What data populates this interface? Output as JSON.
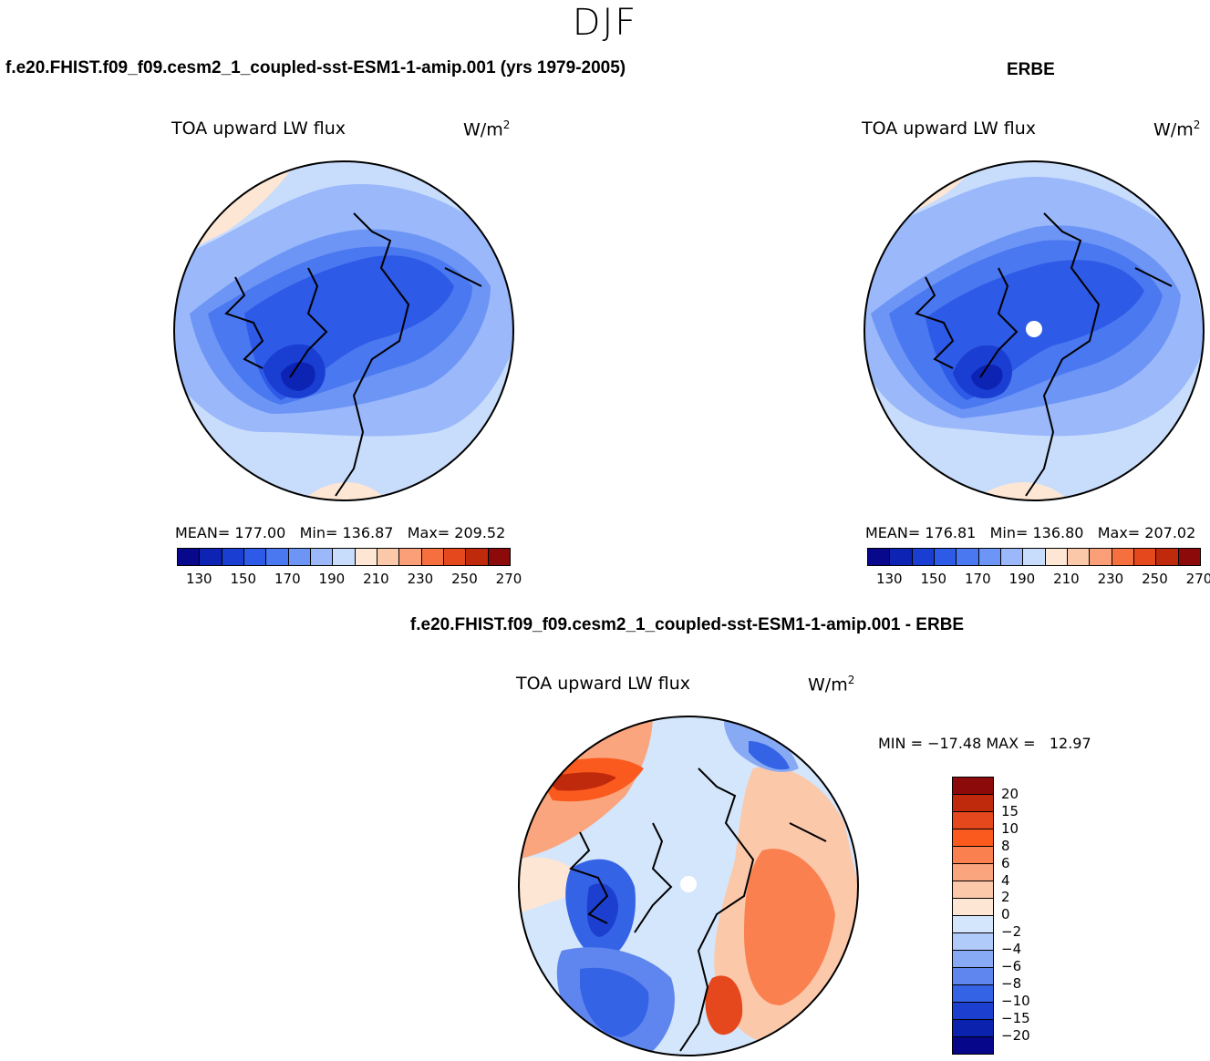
{
  "season": "DJF",
  "case_title": "f.e20.FHIST.f09_f09.cesm2_1_coupled-sst-ESM1-1-amip.001 (yrs 1979-2005)",
  "obs_title": "ERBE",
  "diff_title": "f.e20.FHIST.f09_f09.cesm2_1_coupled-sst-ESM1-1-amip.001 - ERBE",
  "panels": {
    "model": {
      "variable": "TOA upward LW flux",
      "units": "W/m",
      "units_sup": "2",
      "mean_label": "MEAN=",
      "mean": "177.00",
      "min_label": "Min=",
      "min": "136.87",
      "max_label": "Max=",
      "max": "209.52"
    },
    "obs": {
      "variable": "TOA upward LW flux",
      "units": "W/m",
      "units_sup": "2",
      "mean_label": "MEAN=",
      "mean": "176.81",
      "min_label": "Min=",
      "min": "136.80",
      "max_label": "Max=",
      "max": "207.02"
    },
    "diff": {
      "variable": "TOA upward LW flux",
      "units": "W/m",
      "units_sup": "2",
      "minmax_text": "MIN = −17.48 MAX =   12.97"
    }
  },
  "colorbar_main": {
    "tick_labels": [
      "130",
      "150",
      "170",
      "190",
      "210",
      "230",
      "250",
      "270"
    ],
    "colors": [
      "#08088c",
      "#0c23b4",
      "#1a3ed2",
      "#2d5ae6",
      "#4a78f0",
      "#6d95f5",
      "#9ab8fa",
      "#c8dcfc",
      "#fde6d4",
      "#fcc8aa",
      "#fa9f78",
      "#f6703f",
      "#e6481e",
      "#bf2a0c",
      "#8c0a0a"
    ]
  },
  "colorbar_diff": {
    "labels": [
      "20",
      "15",
      "10",
      "8",
      "6",
      "4",
      "2",
      "0",
      "−2",
      "−4",
      "−6",
      "−8",
      "−10",
      "−15",
      "−20"
    ],
    "colors": [
      "#8c0a0a",
      "#bf2a0c",
      "#e6481e",
      "#fa5a1e",
      "#fa8050",
      "#fba57e",
      "#fcc8aa",
      "#fde6d4",
      "#d4e6fc",
      "#b0cbfa",
      "#88aaf5",
      "#5f86ee",
      "#3563e6",
      "#1c3fd0",
      "#0a22ae",
      "#06068a"
    ]
  }
}
